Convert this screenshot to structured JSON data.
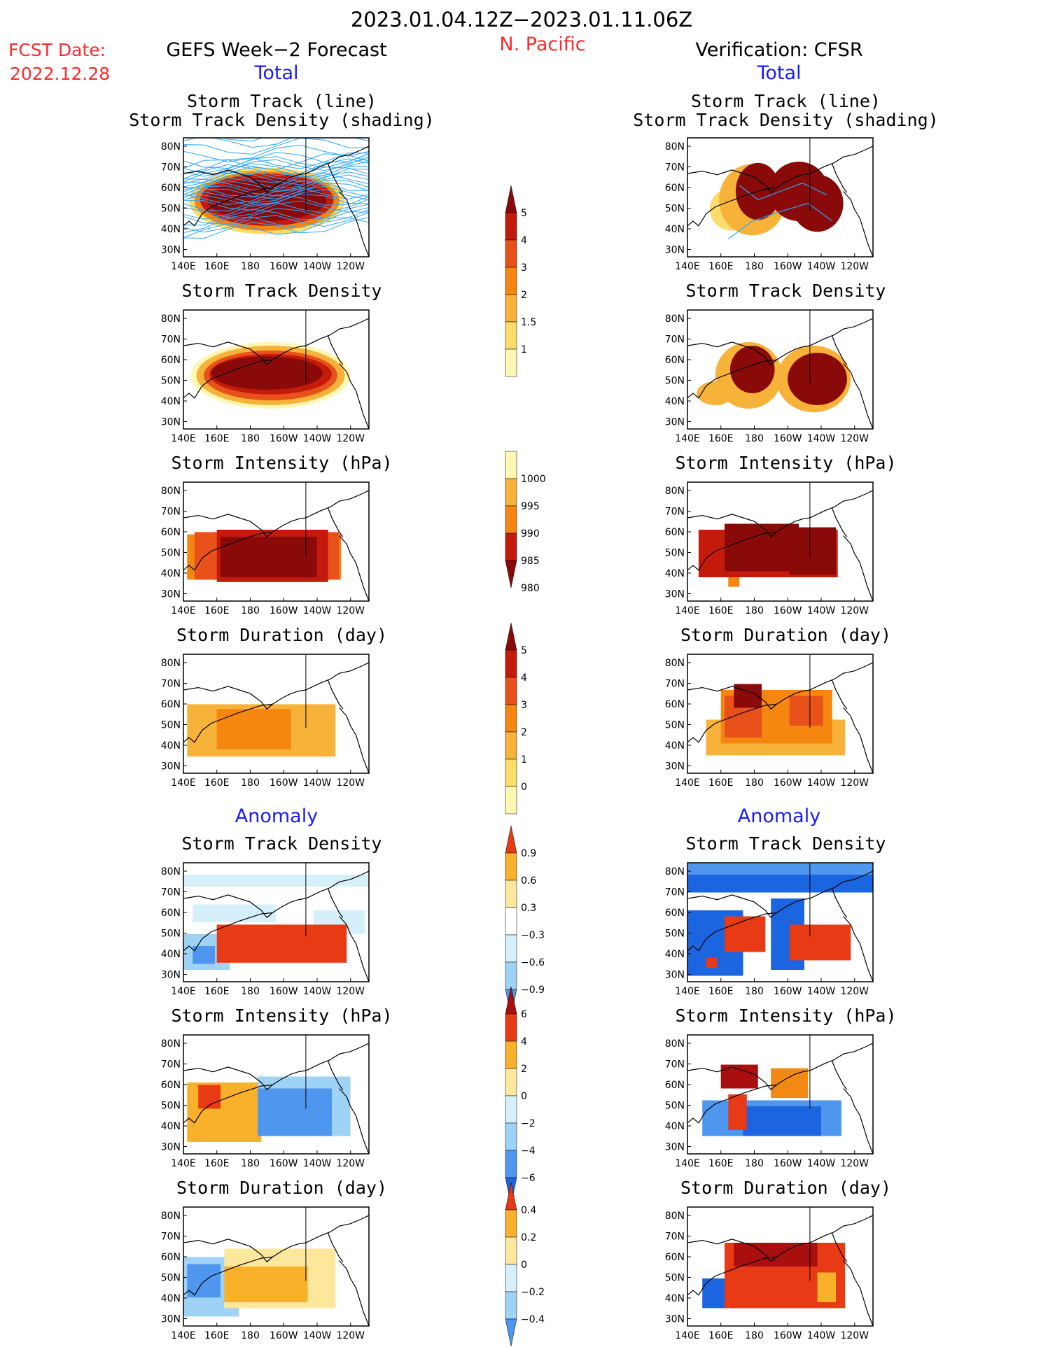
{
  "header": {
    "date_range": "2023.01.04.12Z−2023.01.11.06Z",
    "region": "N. Pacific",
    "fcst_date_label": "FCST Date:",
    "fcst_date_value": "2022.12.28",
    "left_title": "GEFS Week−2 Forecast",
    "right_title": "Verification: CFSR"
  },
  "sections": {
    "total": "Total",
    "anomaly": "Anomaly"
  },
  "axis_ticks": {
    "lat": [
      "80N",
      "70N",
      "60N",
      "50N",
      "40N",
      "30N"
    ],
    "lon": [
      "140E",
      "160E",
      "180",
      "160W",
      "140W",
      "120W"
    ]
  },
  "colors": {
    "text": "#000000",
    "red": "#ff2a2a",
    "blue": "#1a1aff",
    "storm_line": "#2aa6ff",
    "scale_seq": [
      "#fff7b2",
      "#fddc6b",
      "#f7b23a",
      "#f5860f",
      "#e8511a",
      "#c41a0c",
      "#8a0a0a"
    ],
    "scale_anom": [
      "#1b65e0",
      "#4e96ee",
      "#9fd3f5",
      "#d6f0fb",
      "#ffffff",
      "#fde79c",
      "#f9b02a",
      "#f28914",
      "#e83a14",
      "#a90f0f"
    ]
  },
  "panels": {
    "left": [
      {
        "title1": "Storm Track (line)",
        "title2": "Storm Track Density (shading)"
      },
      {
        "title1": "Storm Track Density",
        "title2": ""
      },
      {
        "title1": "Storm Intensity (hPa)",
        "title2": ""
      },
      {
        "title1": "Storm Duration (day)",
        "title2": ""
      },
      {
        "title1": "Storm Track Density",
        "title2": ""
      },
      {
        "title1": "Storm Intensity (hPa)",
        "title2": ""
      },
      {
        "title1": "Storm Duration (day)",
        "title2": ""
      }
    ],
    "right": [
      {
        "title1": "Storm Track (line)",
        "title2": "Storm Track Density (shading)"
      },
      {
        "title1": "Storm Track Density",
        "title2": ""
      },
      {
        "title1": "Storm Intensity (hPa)",
        "title2": ""
      },
      {
        "title1": "Storm Duration (day)",
        "title2": ""
      },
      {
        "title1": "Storm Track Density",
        "title2": ""
      },
      {
        "title1": "Storm Intensity (hPa)",
        "title2": ""
      },
      {
        "title1": "Storm Duration (day)",
        "title2": ""
      }
    ]
  },
  "colorbars": [
    {
      "labels": [
        "5",
        "4",
        "3",
        "2",
        "1.5",
        "1"
      ]
    },
    {
      "labels": [
        "1000",
        "995",
        "990",
        "985",
        "980"
      ]
    },
    {
      "labels": [
        "5",
        "4",
        "3",
        "2",
        "1",
        "0"
      ]
    },
    {
      "labels": [
        "0.9",
        "0.6",
        "0.3",
        "−0.3",
        "−0.6",
        "−0.9"
      ]
    },
    {
      "labels": [
        "6",
        "4",
        "2",
        "0",
        "−2",
        "−4",
        "−6"
      ]
    },
    {
      "labels": [
        "0.4",
        "0.2",
        "0",
        "−0.2",
        "−0.4"
      ]
    }
  ],
  "chart_data": [
    {
      "type": "heatmap",
      "title": "Storm Track (line) / Storm Track Density (shading)",
      "source": "GEFS Week-2 Forecast",
      "section": "Total",
      "x": [
        "140E",
        "160E",
        "180",
        "160W",
        "140W",
        "120W"
      ],
      "y": [
        "80N",
        "70N",
        "60N",
        "50N",
        "40N",
        "30N"
      ],
      "levels": [
        1,
        1.5,
        2,
        3,
        4,
        5
      ]
    },
    {
      "type": "heatmap",
      "title": "Storm Track Density",
      "source": "GEFS Week-2 Forecast",
      "section": "Total",
      "levels": [
        1,
        1.5,
        2,
        3,
        4,
        5
      ]
    },
    {
      "type": "heatmap",
      "title": "Storm Intensity (hPa)",
      "source": "GEFS Week-2 Forecast",
      "section": "Total",
      "levels": [
        1000,
        995,
        990,
        985,
        980
      ]
    },
    {
      "type": "heatmap",
      "title": "Storm Duration (day)",
      "source": "GEFS Week-2 Forecast",
      "section": "Total",
      "levels": [
        0,
        1,
        2,
        3,
        4,
        5
      ]
    },
    {
      "type": "heatmap",
      "title": "Storm Track Density",
      "source": "GEFS Week-2 Forecast",
      "section": "Anomaly",
      "levels": [
        -0.9,
        -0.6,
        -0.3,
        0.3,
        0.6,
        0.9
      ]
    },
    {
      "type": "heatmap",
      "title": "Storm Intensity (hPa)",
      "source": "GEFS Week-2 Forecast",
      "section": "Anomaly",
      "levels": [
        -6,
        -4,
        -2,
        0,
        2,
        4,
        6
      ]
    },
    {
      "type": "heatmap",
      "title": "Storm Duration (day)",
      "source": "GEFS Week-2 Forecast",
      "section": "Anomaly",
      "levels": [
        -0.4,
        -0.2,
        0,
        0.2,
        0.4
      ]
    },
    {
      "type": "heatmap",
      "title": "Storm Track (line) / Storm Track Density (shading)",
      "source": "Verification: CFSR",
      "section": "Total",
      "levels": [
        1,
        1.5,
        2,
        3,
        4,
        5
      ]
    },
    {
      "type": "heatmap",
      "title": "Storm Track Density",
      "source": "Verification: CFSR",
      "section": "Total",
      "levels": [
        1,
        1.5,
        2,
        3,
        4,
        5
      ]
    },
    {
      "type": "heatmap",
      "title": "Storm Intensity (hPa)",
      "source": "Verification: CFSR",
      "section": "Total",
      "levels": [
        1000,
        995,
        990,
        985,
        980
      ]
    },
    {
      "type": "heatmap",
      "title": "Storm Duration (day)",
      "source": "Verification: CFSR",
      "section": "Total",
      "levels": [
        0,
        1,
        2,
        3,
        4,
        5
      ]
    },
    {
      "type": "heatmap",
      "title": "Storm Track Density",
      "source": "Verification: CFSR",
      "section": "Anomaly",
      "levels": [
        -0.9,
        -0.6,
        -0.3,
        0.3,
        0.6,
        0.9
      ]
    },
    {
      "type": "heatmap",
      "title": "Storm Intensity (hPa)",
      "source": "Verification: CFSR",
      "section": "Anomaly",
      "levels": [
        -6,
        -4,
        -2,
        0,
        2,
        4,
        6
      ]
    },
    {
      "type": "heatmap",
      "title": "Storm Duration (day)",
      "source": "Verification: CFSR",
      "section": "Anomaly",
      "levels": [
        -0.4,
        -0.2,
        0,
        0.2,
        0.4
      ]
    }
  ]
}
